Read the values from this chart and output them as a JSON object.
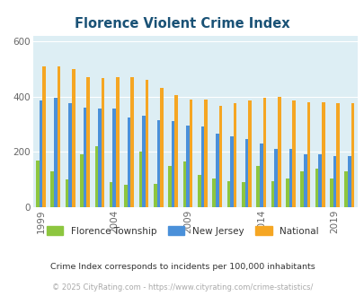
{
  "title": "Florence Violent Crime Index",
  "title_color": "#1a5276",
  "years": [
    1999,
    2000,
    2001,
    2002,
    2003,
    2004,
    2005,
    2006,
    2007,
    2008,
    2009,
    2010,
    2011,
    2012,
    2013,
    2014,
    2015,
    2016,
    2017,
    2018,
    2019,
    2020
  ],
  "florence": [
    170,
    130,
    100,
    190,
    220,
    90,
    80,
    200,
    85,
    150,
    165,
    115,
    105,
    95,
    90,
    150,
    95,
    105,
    130,
    140,
    105,
    130
  ],
  "new_jersey": [
    385,
    395,
    375,
    360,
    355,
    355,
    325,
    330,
    315,
    310,
    295,
    290,
    265,
    255,
    245,
    230,
    210,
    210,
    190,
    190,
    185,
    185
  ],
  "national": [
    510,
    510,
    500,
    470,
    465,
    470,
    470,
    460,
    430,
    405,
    390,
    390,
    365,
    375,
    385,
    395,
    400,
    385,
    380,
    380,
    375,
    375
  ],
  "florence_color": "#8dc63f",
  "nj_color": "#4a90d9",
  "national_color": "#f5a623",
  "bg_color": "#ddeef4",
  "ylim": [
    0,
    620
  ],
  "yticks": [
    0,
    200,
    400,
    600
  ],
  "xlabel_ticks": [
    1999,
    2004,
    2009,
    2014,
    2019
  ],
  "footnote": "Crime Index corresponds to incidents per 100,000 inhabitants",
  "copyright": "© 2025 CityRating.com - https://www.cityrating.com/crime-statistics/",
  "legend_labels": [
    "Florence Township",
    "New Jersey",
    "National"
  ],
  "bar_width": 0.22
}
